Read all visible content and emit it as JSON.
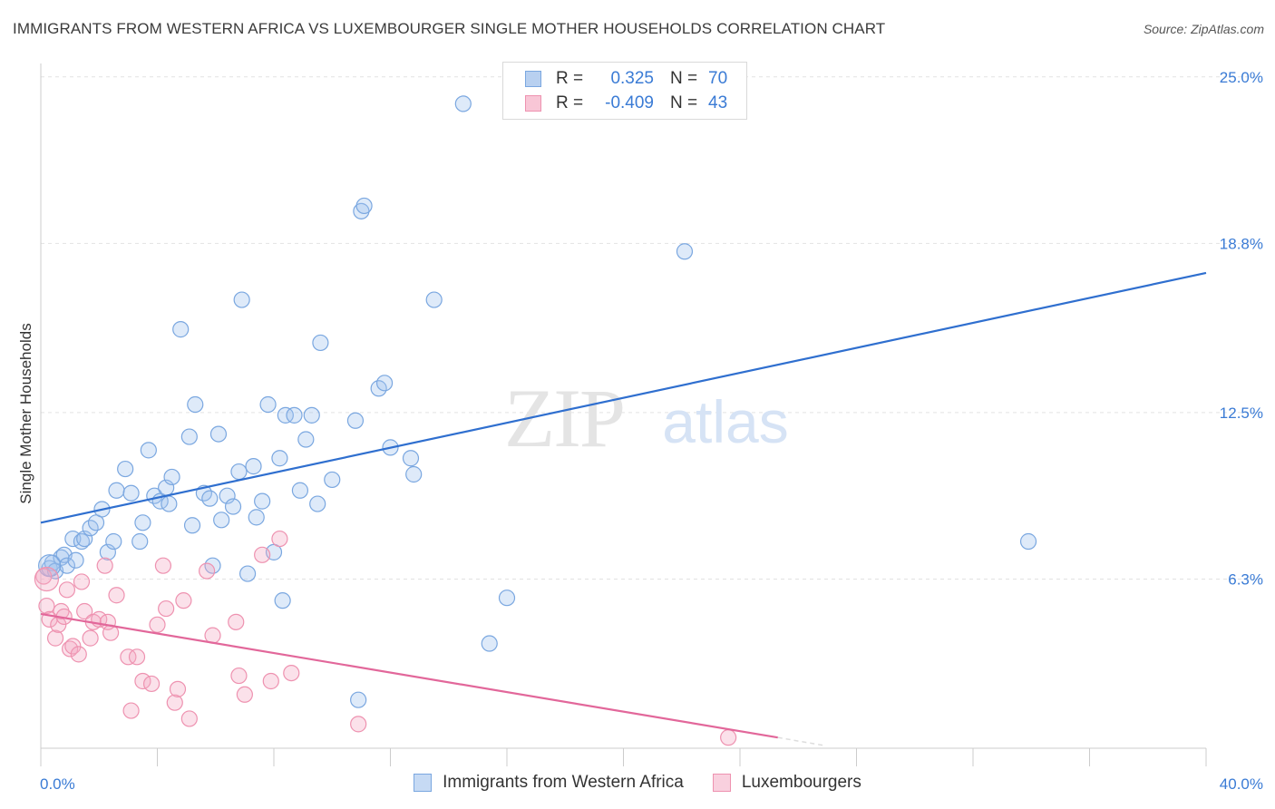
{
  "title": "IMMIGRANTS FROM WESTERN AFRICA VS LUXEMBOURGER SINGLE MOTHER HOUSEHOLDS CORRELATION CHART",
  "source": "Source: ZipAtlas.com",
  "watermark": {
    "zip": "ZIP",
    "atlas": "atlas"
  },
  "legend": {
    "r_label": "R =",
    "n_label": "N =",
    "rows": [
      {
        "r": "0.325",
        "n": "70",
        "fill": "#b8d0f0",
        "stroke": "#7aa7e0"
      },
      {
        "r": "-0.409",
        "n": "43",
        "fill": "#f8c6d6",
        "stroke": "#ee92b0"
      }
    ]
  },
  "bottom_legend": [
    {
      "label": "Immigrants from Western Africa",
      "fill": "#c6daf4",
      "stroke": "#7aa7e0"
    },
    {
      "label": "Luxembourgers",
      "fill": "#f9d0de",
      "stroke": "#ee92b0"
    }
  ],
  "colors": {
    "blue_line": "#2f6fcf",
    "pink_line": "#e2679a",
    "axis_text": "#3a7bd5",
    "grid": "#e2e2e2"
  },
  "chart_data": {
    "type": "scatter",
    "title": "IMMIGRANTS FROM WESTERN AFRICA VS LUXEMBOURGER SINGLE MOTHER HOUSEHOLDS CORRELATION CHART",
    "xlabel": "",
    "ylabel": "Single Mother Households",
    "xlim": [
      0,
      40
    ],
    "ylim": [
      0,
      25.5
    ],
    "x_tick_labels": [
      "0.0%",
      "40.0%"
    ],
    "y_ticks": [
      6.3,
      12.5,
      18.8,
      25.0
    ],
    "y_tick_labels": [
      "6.3%",
      "12.5%",
      "18.8%",
      "25.0%"
    ],
    "grid": true,
    "legend_position": "top-center",
    "series": [
      {
        "name": "Immigrants from Western Africa",
        "color": "#7aa7e0",
        "trend": {
          "x": [
            0,
            40
          ],
          "y": [
            8.4,
            17.7
          ]
        },
        "points": [
          [
            0.3,
            6.7
          ],
          [
            0.4,
            6.9
          ],
          [
            0.5,
            6.6
          ],
          [
            0.7,
            7.1
          ],
          [
            0.8,
            7.2
          ],
          [
            0.9,
            6.8
          ],
          [
            1.1,
            7.8
          ],
          [
            1.2,
            7.0
          ],
          [
            1.4,
            7.7
          ],
          [
            1.5,
            7.8
          ],
          [
            1.7,
            8.2
          ],
          [
            1.9,
            8.4
          ],
          [
            2.1,
            8.9
          ],
          [
            2.3,
            7.3
          ],
          [
            2.5,
            7.7
          ],
          [
            2.6,
            9.6
          ],
          [
            2.9,
            10.4
          ],
          [
            3.1,
            9.5
          ],
          [
            3.4,
            7.7
          ],
          [
            3.5,
            8.4
          ],
          [
            3.7,
            11.1
          ],
          [
            3.9,
            9.4
          ],
          [
            4.1,
            9.2
          ],
          [
            4.3,
            9.7
          ],
          [
            4.4,
            9.1
          ],
          [
            4.5,
            10.1
          ],
          [
            4.8,
            15.6
          ],
          [
            5.1,
            11.6
          ],
          [
            5.2,
            8.3
          ],
          [
            5.3,
            12.8
          ],
          [
            5.6,
            9.5
          ],
          [
            5.8,
            9.3
          ],
          [
            5.9,
            6.8
          ],
          [
            6.1,
            11.7
          ],
          [
            6.2,
            8.5
          ],
          [
            6.4,
            9.4
          ],
          [
            6.6,
            9.0
          ],
          [
            6.8,
            10.3
          ],
          [
            6.9,
            16.7
          ],
          [
            7.1,
            6.5
          ],
          [
            7.3,
            10.5
          ],
          [
            7.4,
            8.6
          ],
          [
            7.6,
            9.2
          ],
          [
            7.8,
            12.8
          ],
          [
            8.0,
            7.3
          ],
          [
            8.2,
            10.8
          ],
          [
            8.3,
            5.5
          ],
          [
            8.4,
            12.4
          ],
          [
            8.7,
            12.4
          ],
          [
            8.9,
            9.6
          ],
          [
            9.1,
            11.5
          ],
          [
            9.3,
            12.4
          ],
          [
            9.5,
            9.1
          ],
          [
            9.6,
            15.1
          ],
          [
            10.0,
            10.0
          ],
          [
            10.8,
            12.2
          ],
          [
            11.0,
            20.0
          ],
          [
            11.1,
            20.2
          ],
          [
            10.9,
            1.8
          ],
          [
            11.6,
            13.4
          ],
          [
            11.8,
            13.6
          ],
          [
            12.0,
            11.2
          ],
          [
            12.7,
            10.8
          ],
          [
            12.8,
            10.2
          ],
          [
            13.5,
            16.7
          ],
          [
            14.5,
            24.0
          ],
          [
            15.4,
            3.9
          ],
          [
            16.0,
            5.6
          ],
          [
            22.1,
            18.5
          ],
          [
            33.9,
            7.7
          ]
        ]
      },
      {
        "name": "Luxembourgers",
        "color": "#ee92b0",
        "trend": {
          "x": [
            0,
            25.3
          ],
          "y": [
            5.0,
            0.4
          ]
        },
        "trend_dashed": {
          "x": [
            25.3,
            26.9
          ],
          "y": [
            0.4,
            0.1
          ]
        },
        "points": [
          [
            0.1,
            6.4
          ],
          [
            0.2,
            5.3
          ],
          [
            0.3,
            4.8
          ],
          [
            0.5,
            4.1
          ],
          [
            0.6,
            4.6
          ],
          [
            0.7,
            5.1
          ],
          [
            0.8,
            4.9
          ],
          [
            0.9,
            5.9
          ],
          [
            1.0,
            3.7
          ],
          [
            1.1,
            3.8
          ],
          [
            1.3,
            3.5
          ],
          [
            1.4,
            6.2
          ],
          [
            1.5,
            5.1
          ],
          [
            1.7,
            4.1
          ],
          [
            1.8,
            4.7
          ],
          [
            2.0,
            4.8
          ],
          [
            2.2,
            6.8
          ],
          [
            2.3,
            4.7
          ],
          [
            2.4,
            4.3
          ],
          [
            2.6,
            5.7
          ],
          [
            3.0,
            3.4
          ],
          [
            3.1,
            1.4
          ],
          [
            3.3,
            3.4
          ],
          [
            3.5,
            2.5
          ],
          [
            3.8,
            2.4
          ],
          [
            4.0,
            4.6
          ],
          [
            4.2,
            6.8
          ],
          [
            4.3,
            5.2
          ],
          [
            4.6,
            1.7
          ],
          [
            4.7,
            2.2
          ],
          [
            4.9,
            5.5
          ],
          [
            5.1,
            1.1
          ],
          [
            5.7,
            6.6
          ],
          [
            5.9,
            4.2
          ],
          [
            6.7,
            4.7
          ],
          [
            6.8,
            2.7
          ],
          [
            7.0,
            2.0
          ],
          [
            7.6,
            7.2
          ],
          [
            7.9,
            2.5
          ],
          [
            8.2,
            7.8
          ],
          [
            8.6,
            2.8
          ],
          [
            10.9,
            0.9
          ],
          [
            23.6,
            0.4
          ]
        ]
      }
    ]
  }
}
